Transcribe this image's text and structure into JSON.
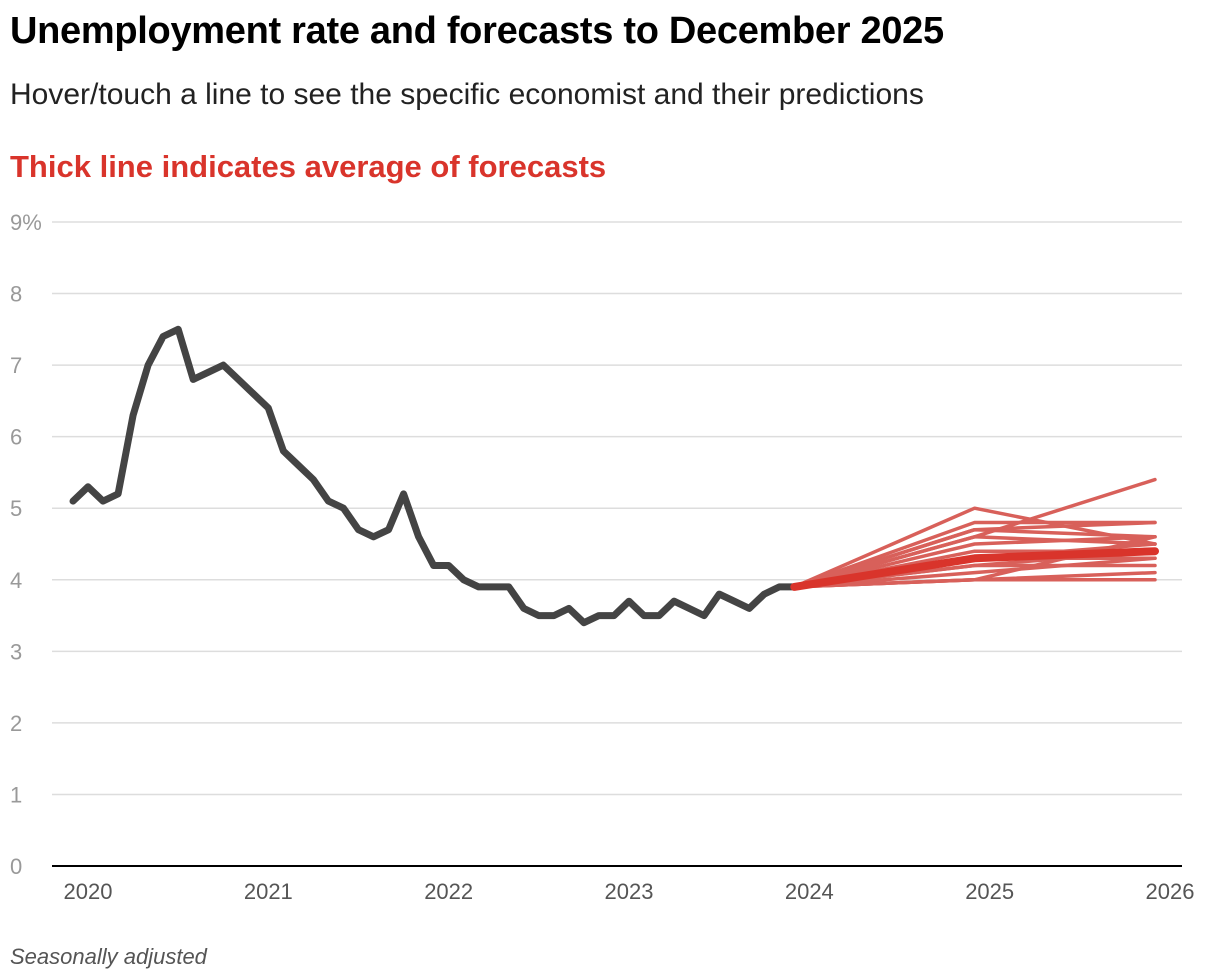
{
  "header": {
    "title": "Unemployment rate and forecasts to December 2025",
    "subtitle": "Hover/touch a line to see the specific economist and their predictions",
    "callout": "Thick line indicates average of forecasts"
  },
  "footer": {
    "note": "Seasonally adjusted"
  },
  "colors": {
    "actual": "#444444",
    "forecast": "#d8605a",
    "average": "#d9342b",
    "callout": "#d9342b",
    "grid": "#dddddd",
    "axis": "#000000",
    "tick": "#999999"
  },
  "chart_data": {
    "type": "line",
    "y_tick_labels": [
      "9%",
      "8",
      "7",
      "6",
      "5",
      "4",
      "3",
      "2",
      "1",
      "0"
    ],
    "y_ticks": [
      9,
      8,
      7,
      6,
      5,
      4,
      3,
      2,
      1,
      0
    ],
    "ylim": [
      0,
      9
    ],
    "x_tick_labels": [
      "2020",
      "2021",
      "2022",
      "2023",
      "2024",
      "2025",
      "2026"
    ],
    "xlim": [
      "2020-01",
      "2026-01"
    ],
    "grid": true,
    "series": [
      {
        "role": "actual",
        "x": [
          "2019-12",
          "2020-01",
          "2020-02",
          "2020-03",
          "2020-04",
          "2020-05",
          "2020-06",
          "2020-07",
          "2020-08",
          "2020-09",
          "2020-10",
          "2020-11",
          "2020-12",
          "2021-01",
          "2021-02",
          "2021-03",
          "2021-04",
          "2021-05",
          "2021-06",
          "2021-07",
          "2021-08",
          "2021-09",
          "2021-10",
          "2021-11",
          "2021-12",
          "2022-01",
          "2022-02",
          "2022-03",
          "2022-04",
          "2022-05",
          "2022-06",
          "2022-07",
          "2022-08",
          "2022-09",
          "2022-10",
          "2022-11",
          "2022-12",
          "2023-01",
          "2023-02",
          "2023-03",
          "2023-04",
          "2023-05",
          "2023-06",
          "2023-07",
          "2023-08",
          "2023-09",
          "2023-10",
          "2023-11",
          "2023-12"
        ],
        "values": [
          5.1,
          5.3,
          5.1,
          5.2,
          6.3,
          7.0,
          7.4,
          7.5,
          6.8,
          6.9,
          7.0,
          6.8,
          6.6,
          6.4,
          5.8,
          5.6,
          5.4,
          5.1,
          5.0,
          4.7,
          4.6,
          4.7,
          5.2,
          4.6,
          4.2,
          4.2,
          4.0,
          3.9,
          3.9,
          3.9,
          3.6,
          3.5,
          3.5,
          3.6,
          3.4,
          3.5,
          3.5,
          3.7,
          3.5,
          3.5,
          3.7,
          3.6,
          3.5,
          3.8,
          3.7,
          3.6,
          3.8,
          3.9,
          3.9
        ]
      },
      {
        "role": "forecast",
        "x": [
          "2023-12",
          "2024-12",
          "2025-12"
        ],
        "lines": [
          [
            3.9,
            5.0,
            4.5
          ],
          [
            3.9,
            4.6,
            5.4
          ],
          [
            3.9,
            4.8,
            4.8
          ],
          [
            3.9,
            4.7,
            4.8
          ],
          [
            3.9,
            4.7,
            4.6
          ],
          [
            3.9,
            4.6,
            4.5
          ],
          [
            3.9,
            4.5,
            4.6
          ],
          [
            3.9,
            4.4,
            4.4
          ],
          [
            3.9,
            4.3,
            4.5
          ],
          [
            3.9,
            4.3,
            4.3
          ],
          [
            3.9,
            4.2,
            4.4
          ],
          [
            3.9,
            4.2,
            4.2
          ],
          [
            3.9,
            4.1,
            4.3
          ],
          [
            3.9,
            4.0,
            4.6
          ],
          [
            3.9,
            4.0,
            4.1
          ],
          [
            3.9,
            4.0,
            4.0
          ]
        ]
      },
      {
        "role": "average",
        "x": [
          "2023-12",
          "2024-12",
          "2025-12"
        ],
        "values": [
          3.9,
          4.3,
          4.4
        ]
      }
    ]
  }
}
